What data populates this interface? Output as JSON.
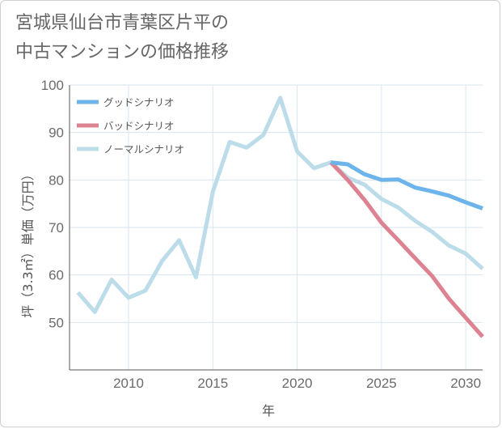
{
  "chart_data": {
    "type": "line",
    "title": [
      "宮城県仙台市青葉区片平の",
      "中古マンションの価格推移"
    ],
    "xlabel": "年",
    "ylabel": "坪（3.3㎡）単価（万円）",
    "xlim": [
      2006.5,
      2031
    ],
    "ylim": [
      40,
      100
    ],
    "x_ticks": [
      2010,
      2015,
      2020,
      2025,
      2030
    ],
    "y_ticks": [
      50,
      60,
      70,
      80,
      90,
      100
    ],
    "grid": true,
    "legend_position": "top-left",
    "series": [
      {
        "name": "グッドシナリオ",
        "color": "#6cb4ea",
        "points": [
          [
            2022,
            83.7
          ],
          [
            2023,
            83.3
          ],
          [
            2024,
            81.2
          ],
          [
            2025,
            80.0
          ],
          [
            2026,
            80.1
          ],
          [
            2027,
            78.4
          ],
          [
            2028,
            77.6
          ],
          [
            2029,
            76.7
          ],
          [
            2030,
            75.3
          ],
          [
            2031,
            74.0
          ]
        ]
      },
      {
        "name": "バッドシナリオ",
        "color": "#dc8290",
        "points": [
          [
            2022,
            83.7
          ],
          [
            2023,
            80.0
          ],
          [
            2024,
            75.8
          ],
          [
            2025,
            71.0
          ],
          [
            2026,
            67.3
          ],
          [
            2027,
            63.5
          ],
          [
            2028,
            59.8
          ],
          [
            2029,
            55.0
          ],
          [
            2030,
            51.0
          ],
          [
            2031,
            47.0
          ]
        ]
      },
      {
        "name": "ノーマルシナリオ",
        "color": "#bddcea",
        "points": [
          [
            2007,
            56.3
          ],
          [
            2008,
            52.2
          ],
          [
            2009,
            59.0
          ],
          [
            2010,
            55.2
          ],
          [
            2011,
            56.7
          ],
          [
            2012,
            63.0
          ],
          [
            2013,
            67.3
          ],
          [
            2014,
            59.5
          ],
          [
            2015,
            77.5
          ],
          [
            2016,
            88.0
          ],
          [
            2017,
            86.8
          ],
          [
            2018,
            89.5
          ],
          [
            2019,
            97.3
          ],
          [
            2020,
            86.0
          ],
          [
            2021,
            82.5
          ],
          [
            2022,
            83.7
          ],
          [
            2023,
            80.5
          ],
          [
            2024,
            79.0
          ],
          [
            2025,
            76.0
          ],
          [
            2026,
            74.2
          ],
          [
            2027,
            71.4
          ],
          [
            2028,
            69.1
          ],
          [
            2029,
            66.2
          ],
          [
            2030,
            64.5
          ],
          [
            2031,
            61.3
          ]
        ]
      }
    ]
  }
}
